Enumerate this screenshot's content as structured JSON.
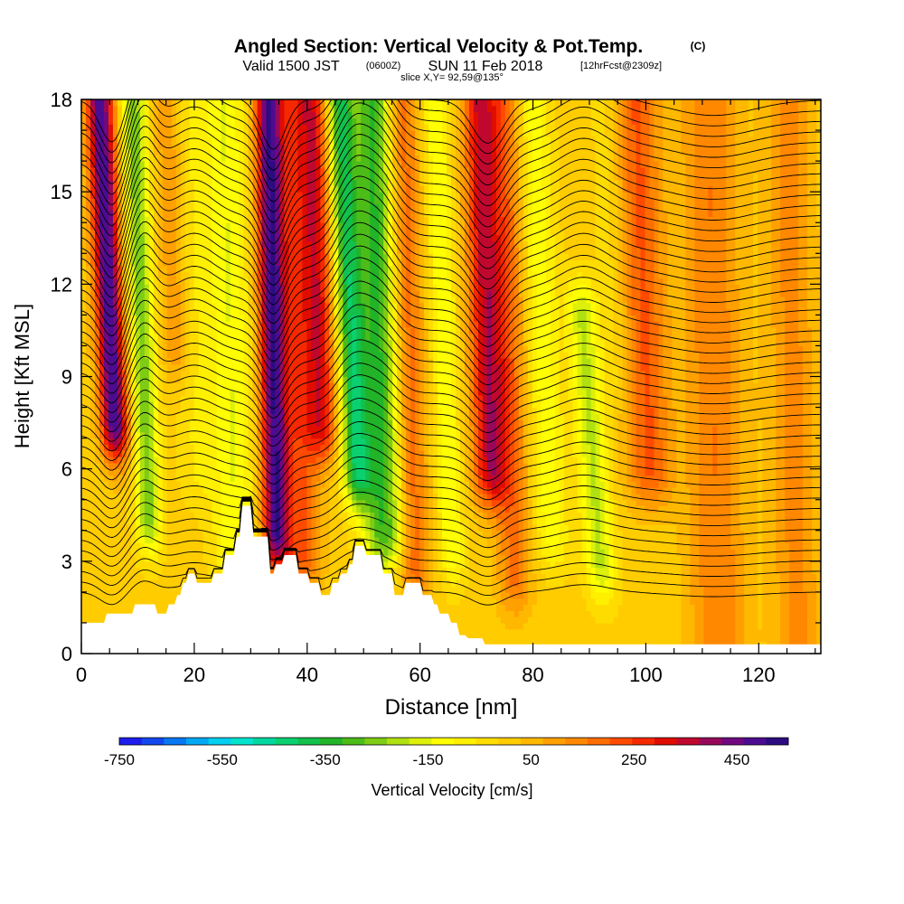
{
  "chart_data": {
    "type": "heatmap",
    "title": "Angled Section: Vertical Velocity & Pot.Temp.",
    "title_tag": "(C)",
    "subtitle_parts": {
      "valid_prefix": "Valid 1500 JST",
      "utc": "(0600Z)",
      "date": "SUN 11 Feb 2018",
      "forecast": "[12hrFcst@2309z]"
    },
    "slice_label": "slice X,Y= 92,59@135°",
    "xlabel": "Distance [nm]",
    "ylabel": "Height [Kft MSL]",
    "xlim": [
      0,
      131
    ],
    "ylim": [
      0,
      18
    ],
    "x_ticks": [
      0,
      20,
      40,
      60,
      80,
      100,
      120
    ],
    "y_ticks": [
      0,
      3,
      6,
      9,
      12,
      15,
      18
    ],
    "grid": false,
    "colorbar": {
      "label": "Vertical Velocity [cm/s]",
      "min": -750,
      "max": 550,
      "step": 50,
      "tick_labels": [
        "-750",
        "-550",
        "-350",
        "-150",
        "50",
        "250",
        "450"
      ],
      "colors": [
        "#1d1dee",
        "#1247ee",
        "#0878f2",
        "#00a8f4",
        "#00cff0",
        "#00e4ce",
        "#00d79f",
        "#0ad070",
        "#12c04c",
        "#22b428",
        "#4cbc18",
        "#7ecc14",
        "#b0e010",
        "#dcf00a",
        "#ffff00",
        "#fff000",
        "#ffdc00",
        "#ffcc00",
        "#ffb800",
        "#ffa000",
        "#ff8800",
        "#ff6c00",
        "#ff4a00",
        "#f52800",
        "#e00c00",
        "#c0082e",
        "#98085a",
        "#700880",
        "#4c0c90",
        "#2c0c80"
      ]
    },
    "w_field": {
      "units": "cm/s",
      "background": 120,
      "features": [
        {
          "x": 5.5,
          "z_top": 18,
          "z_bottom": 7.5,
          "tilt_kft_per_nm": -0.25,
          "width_nm": 2.4,
          "w": 580
        },
        {
          "x": 11,
          "z_top": 18,
          "z_bottom": 4.5,
          "tilt_kft_per_nm": -0.2,
          "width_nm": 2.2,
          "w": -300
        },
        {
          "x": 17,
          "z_top": 18,
          "z_bottom": 10,
          "tilt_kft_per_nm": -0.2,
          "width_nm": 2.5,
          "w": 130
        },
        {
          "x": 20,
          "z_top": 18,
          "z_bottom": 6,
          "tilt_kft_per_nm": -0.15,
          "width_nm": 3,
          "w": -70
        },
        {
          "x": 26.5,
          "z_top": 18,
          "z_bottom": 3.5,
          "tilt_kft_per_nm": -0.15,
          "width_nm": 3.8,
          "w": -170
        },
        {
          "x": 34,
          "z_top": 18,
          "z_bottom": 4,
          "tilt_kft_per_nm": -0.1,
          "width_nm": 2.4,
          "w": 560
        },
        {
          "x": 38.5,
          "z_top": 18,
          "z_bottom": 3.2,
          "tilt_kft_per_nm": -0.12,
          "width_nm": 3.2,
          "w": 230
        },
        {
          "x": 42.5,
          "z_top": 18,
          "z_bottom": 7.5,
          "tilt_kft_per_nm": -0.15,
          "width_nm": 2.8,
          "w": 330
        },
        {
          "x": 48,
          "z_top": 18,
          "z_bottom": 6,
          "tilt_kft_per_nm": -0.25,
          "width_nm": 2.5,
          "w": -430
        },
        {
          "x": 53,
          "z_top": 18,
          "z_bottom": 4,
          "tilt_kft_per_nm": -0.15,
          "width_nm": 3.6,
          "w": -380
        },
        {
          "x": 58,
          "z_top": 18,
          "z_bottom": 3,
          "tilt_kft_per_nm": -0.15,
          "width_nm": 2.8,
          "w": 230
        },
        {
          "x": 64.5,
          "z_top": 18,
          "z_bottom": 3.5,
          "tilt_kft_per_nm": -0.2,
          "width_nm": 2.2,
          "w": -170
        },
        {
          "x": 72,
          "z_top": 18,
          "z_bottom": 6,
          "tilt_kft_per_nm": -0.15,
          "width_nm": 3,
          "w": 400
        },
        {
          "x": 76,
          "z_top": 18,
          "z_bottom": 2.5,
          "tilt_kft_per_nm": -0.1,
          "width_nm": 3,
          "w": 190
        },
        {
          "x": 82,
          "z_top": 18,
          "z_bottom": 4,
          "tilt_kft_per_nm": -0.25,
          "width_nm": 3,
          "w": -150
        },
        {
          "x": 89.5,
          "z_top": 11,
          "z_bottom": 3,
          "tilt_kft_per_nm": -0.4,
          "width_nm": 2.6,
          "w": -230
        },
        {
          "x": 95,
          "z_top": 18,
          "z_bottom": 9,
          "tilt_kft_per_nm": -0.2,
          "width_nm": 3,
          "w": -60
        },
        {
          "x": 100,
          "z_top": 18,
          "z_bottom": 6,
          "tilt_kft_per_nm": -0.2,
          "width_nm": 4,
          "w": 240
        },
        {
          "x": 112,
          "z_top": 18,
          "z_bottom": 0.5,
          "tilt_kft_per_nm": -0.1,
          "width_nm": 5,
          "w": 180
        },
        {
          "x": 126,
          "z_top": 18,
          "z_bottom": 0.5,
          "tilt_kft_per_nm": -0.1,
          "width_nm": 4,
          "w": 150
        }
      ]
    },
    "terrain": {
      "units": "kft",
      "x": [
        0,
        4,
        4.5,
        9,
        9.5,
        13,
        13.5,
        15,
        15.5,
        16.5,
        17,
        17.5,
        18,
        18.5,
        19,
        20,
        20.5,
        23,
        23.5,
        25,
        25.5,
        27,
        27.5,
        28,
        28.5,
        30,
        30.5,
        33,
        33.5,
        34,
        34.5,
        35.5,
        36,
        38,
        38.5,
        40,
        40.5,
        42,
        42.5,
        44,
        44.5,
        45.5,
        46,
        47,
        47.5,
        48,
        48.5,
        50,
        50.5,
        53,
        53.5,
        55,
        55.5,
        57,
        57.5,
        60,
        60.5,
        62,
        62.5,
        63,
        63.5,
        65,
        65.5,
        66.5,
        67,
        68,
        68.5,
        71,
        71.5,
        131
      ],
      "z": [
        1.0,
        1.0,
        1.3,
        1.3,
        1.6,
        1.6,
        1.3,
        1.3,
        1.6,
        1.6,
        1.9,
        1.9,
        2.3,
        2.3,
        2.6,
        2.6,
        2.3,
        2.3,
        2.6,
        2.6,
        3.2,
        3.2,
        3.8,
        3.8,
        4.8,
        4.8,
        3.8,
        3.8,
        2.6,
        2.6,
        2.9,
        2.9,
        3.2,
        3.2,
        2.6,
        2.6,
        2.3,
        2.3,
        1.9,
        1.9,
        2.3,
        2.3,
        2.6,
        2.6,
        2.9,
        2.9,
        3.5,
        3.5,
        3.2,
        3.2,
        2.6,
        2.6,
        1.9,
        1.9,
        2.3,
        2.3,
        1.9,
        1.9,
        1.6,
        1.6,
        1.3,
        1.3,
        1.0,
        1.0,
        0.6,
        0.6,
        0.5,
        0.5,
        0.3,
        0.3
      ]
    },
    "theta_contours": {
      "count": 48,
      "z0_kft": 2.0,
      "spacing_kft": 0.34,
      "color": "#000000",
      "wave_features": [
        {
          "x": 5.5,
          "amp_kft": -1.4,
          "width_nm": 3
        },
        {
          "x": 11,
          "amp_kft": 1.2,
          "width_nm": 3
        },
        {
          "x": 20,
          "amp_kft": 0.8,
          "width_nm": 5
        },
        {
          "x": 34,
          "amp_kft": -1.6,
          "width_nm": 3
        },
        {
          "x": 48,
          "amp_kft": 1.6,
          "width_nm": 4
        },
        {
          "x": 53,
          "amp_kft": 1.2,
          "width_nm": 4
        },
        {
          "x": 72,
          "amp_kft": -1.4,
          "width_nm": 4
        },
        {
          "x": 89,
          "amp_kft": 0.8,
          "width_nm": 6
        },
        {
          "x": 112,
          "amp_kft": -0.5,
          "width_nm": 10
        }
      ]
    }
  }
}
